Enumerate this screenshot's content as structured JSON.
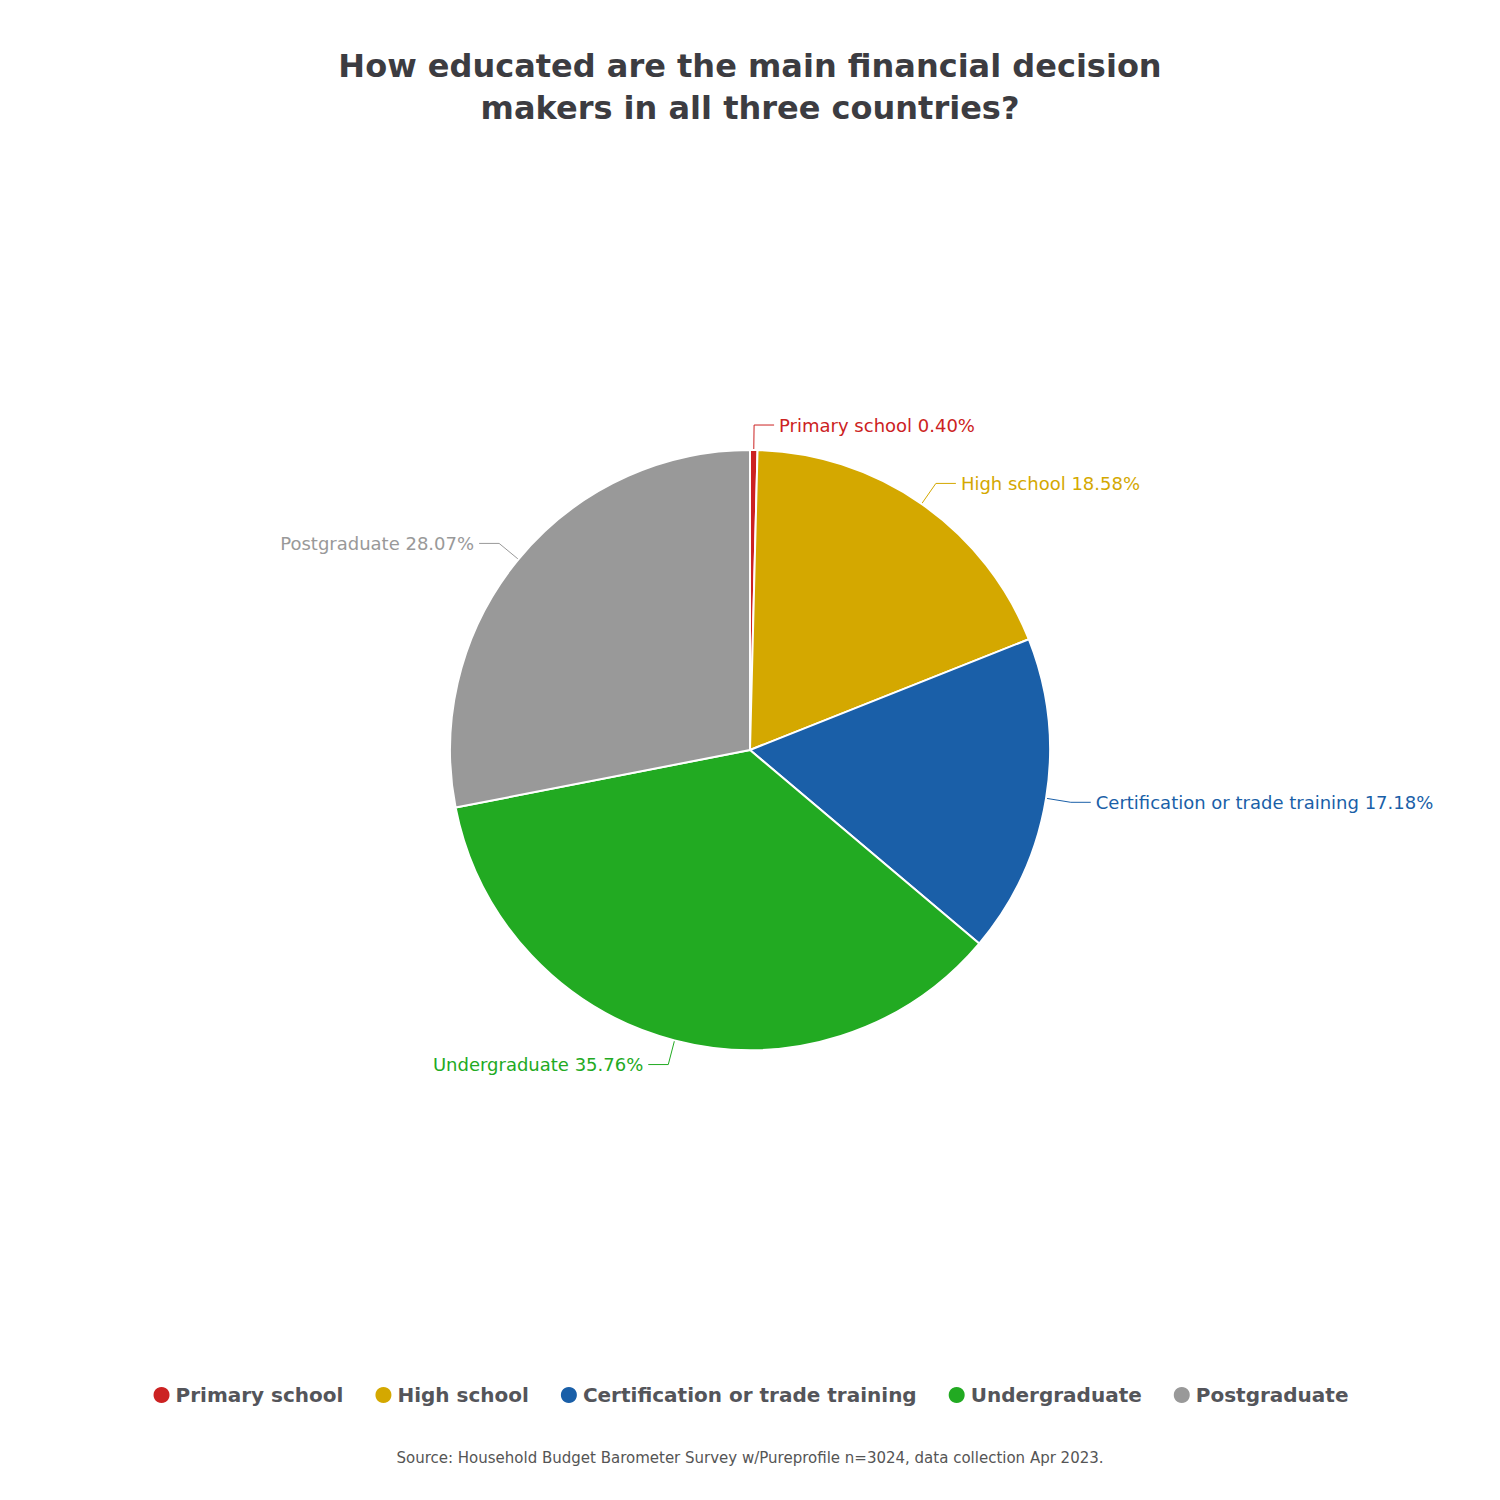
{
  "chart_data": {
    "type": "pie",
    "title": "How educated are the main financial decision\nmakers in all three countries?",
    "categories": [
      "Primary school",
      "High school",
      "Certification or trade training",
      "Undergraduate",
      "Postgraduate"
    ],
    "values": [
      0.4,
      18.58,
      17.18,
      35.76,
      28.07
    ],
    "colors": [
      "#cc2222",
      "#d4a800",
      "#1a5fa8",
      "#22aa22",
      "#999999"
    ],
    "data_labels": true,
    "value_labels": [
      "Primary school 0.40%",
      "High school 18.58%",
      "Certification or trade training 17.18%",
      "Undergraduate 35.76%",
      "Postgraduate 28.07%"
    ],
    "legend": "bottom",
    "annotations": [
      "Source: Household Budget Barometer Survey w/Pureprofile n=3024, data collection Apr 2023."
    ]
  }
}
